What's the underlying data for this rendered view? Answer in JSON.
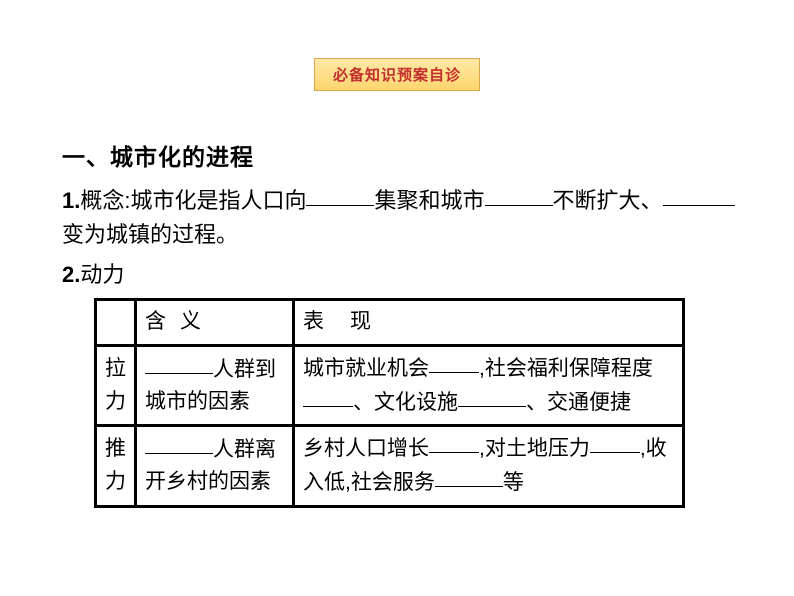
{
  "badge": "必备知识预案自诊",
  "section_title": "一、城市化的进程",
  "concept": {
    "label": "1.",
    "t1": "概念:城市化是指人口向",
    "t2": "集聚和城市",
    "t3": "不断扩大、",
    "t4": "变为城镇的过程。"
  },
  "power_label": "2.动力",
  "table": {
    "h0": "",
    "h1": "含义",
    "h2": "表现",
    "rows": [
      {
        "label": "拉力",
        "meaning_pre": "",
        "meaning_post": "人群到城市的因素",
        "perf_t1": "城市就业机会",
        "perf_t2": ",社会福利保障程度",
        "perf_t3": "、文化设施",
        "perf_t4": "、交通便捷"
      },
      {
        "label": "推力",
        "meaning_pre": "",
        "meaning_post": "人群离开乡村的因素",
        "perf_t1": "乡村人口增长",
        "perf_t2": ",对土地压力",
        "perf_t3": ",收入低,社会服务",
        "perf_t4": "等"
      }
    ]
  },
  "style": {
    "badge_bg_top": "#ffe9a8",
    "badge_bg_bottom": "#fcd56e",
    "badge_border": "#d9a84a",
    "badge_text": "#c22e2e",
    "table_border": "#000000",
    "text_color": "#000000",
    "blank_widths": {
      "short": 50,
      "med": 68,
      "long": 72
    }
  }
}
